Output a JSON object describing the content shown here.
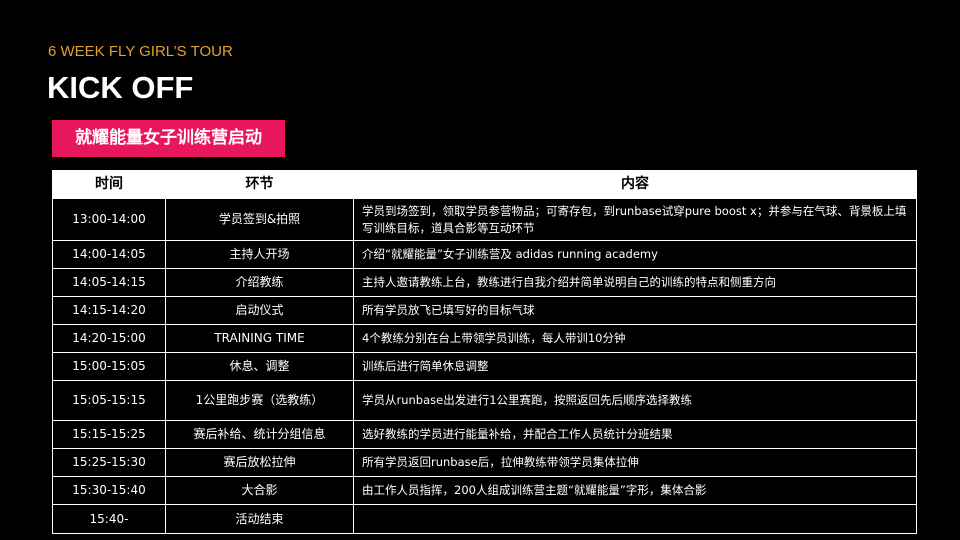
{
  "header": {
    "subtitle": "6 WEEK FLY GIRL’S TOUR",
    "title": "KICK OFF"
  },
  "banner": "就耀能量女子训练营启动",
  "table": {
    "columns": [
      "时间",
      "环节",
      "内容"
    ],
    "rows": [
      [
        "13:00-14:00",
        "学员签到&拍照",
        "学员到场签到，领取学员参营物品；可寄存包，到runbase试穿pure boost x；并参与在气球、背景板上填写训练目标，道具合影等互动环节"
      ],
      [
        "14:00-14:05",
        "主持人开场",
        "介绍“就耀能量”女子训练营及 adidas running academy"
      ],
      [
        "14:05-14:15",
        "介绍教练",
        "主持人邀请教练上台，教练进行自我介绍并简单说明自己的训练的特点和侧重方向"
      ],
      [
        "14:15-14:20",
        "启动仪式",
        "所有学员放飞已填写好的目标气球"
      ],
      [
        "14:20-15:00",
        "TRAINING TIME",
        "4个教练分别在台上带领学员训练，每人带训10分钟"
      ],
      [
        "15:00-15:05",
        "休息、调整",
        "训练后进行简单休息调整"
      ],
      [
        "15:05-15:15",
        "1公里跑步赛（选教练）",
        "学员从runbase出发进行1公里赛跑，按照返回先后顺序选择教练"
      ],
      [
        "15:15-15:25",
        "赛后补给、统计分组信息",
        "选好教练的学员进行能量补给，并配合工作人员统计分班结果"
      ],
      [
        "15:25-15:30",
        "赛后放松拉伸",
        "所有学员返回runbase后，拉伸教练带领学员集体拉伸"
      ],
      [
        "15:30-15:40",
        "大合影",
        "由工作人员指挥，200人组成训练营主题“就耀能量”字形，集体合影"
      ],
      [
        "15:40-",
        "活动结束"
      ]
    ]
  }
}
